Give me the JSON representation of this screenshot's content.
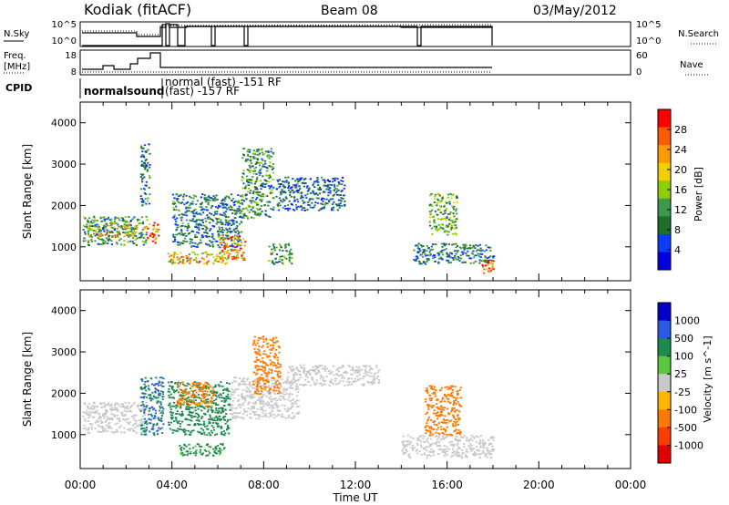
{
  "header": {
    "station": "Kodiak (fitACF)",
    "beam": "Beam 08",
    "date": "03/May/2012"
  },
  "summary_panels": {
    "noise": {
      "left_label": "N.Sky",
      "left_ticks": [
        "10^5",
        "10^0"
      ],
      "right_ticks": [
        "10^5",
        "10^0"
      ],
      "right_label": "N.Search"
    },
    "freq": {
      "left_label_line1": "Freq.",
      "left_label_line2": "[MHz]",
      "left_ticks": [
        "18",
        "8"
      ],
      "right_ticks": [
        "60",
        "0"
      ],
      "right_label": "Nave"
    },
    "cpid": {
      "label": "CPID",
      "segments": [
        {
          "text": "normalsound"
        },
        {
          "text": "normal (fast) -151 RF"
        },
        {
          "text": "(fast) -157 RF"
        }
      ]
    }
  },
  "x_axis": {
    "label": "Time UT",
    "ticks": [
      "00:00",
      "04:00",
      "08:00",
      "12:00",
      "16:00",
      "20:00",
      "00:00"
    ]
  },
  "power_panel": {
    "ylabel": "Slant Range [km]",
    "yticks": [
      "4000",
      "3000",
      "2000",
      "1000"
    ],
    "colorbar_label": "Power [dB]",
    "colorbar_ticks": [
      "28",
      "24",
      "20",
      "16",
      "12",
      "8",
      "4"
    ],
    "colorbar_colors": [
      "#ff0000",
      "#ff5a00",
      "#ff9a00",
      "#f0d000",
      "#8fce00",
      "#3c9a50",
      "#1e6e2c",
      "#0a3cff",
      "#0000e0"
    ]
  },
  "velocity_panel": {
    "ylabel": "Slant Range [km]",
    "yticks": [
      "4000",
      "3000",
      "2000",
      "1000"
    ],
    "colorbar_label": "Velocity [m s^-1]",
    "colorbar_ticks": [
      "1000",
      "500",
      "100",
      "25",
      "-25",
      "-100",
      "-500",
      "-1000"
    ],
    "colorbar_colors": [
      "#0000c8",
      "#2a5ae0",
      "#1e8a50",
      "#5ac83c",
      "#c8c8c8",
      "#ffb400",
      "#ff7800",
      "#ff3c00",
      "#e00000"
    ]
  },
  "chart_data": {
    "type": "heatmap",
    "x_range_hours": [
      0,
      24
    ],
    "y_range_km": [
      180,
      4500
    ],
    "x_ticks_hours": [
      0,
      4,
      8,
      12,
      16,
      20,
      24
    ],
    "y_ticks_km": [
      4000,
      3000,
      2000,
      1000
    ],
    "power_regions": [
      {
        "t0": 0.1,
        "t1": 2.9,
        "r0": 1050,
        "r1": 1750,
        "value": 10
      },
      {
        "t0": 0.3,
        "t1": 2.5,
        "r0": 1250,
        "r1": 1550,
        "value": 18
      },
      {
        "t0": 2.8,
        "t1": 3.4,
        "r0": 1100,
        "r1": 1600,
        "value": 26
      },
      {
        "t0": 2.6,
        "t1": 3.0,
        "r0": 2000,
        "r1": 3500,
        "value": 8
      },
      {
        "t0": 3.8,
        "t1": 6.5,
        "r0": 600,
        "r1": 900,
        "value": 20
      },
      {
        "t0": 4.0,
        "t1": 7.0,
        "r0": 1000,
        "r1": 2300,
        "value": 8
      },
      {
        "t0": 6.0,
        "t1": 7.2,
        "r0": 700,
        "r1": 1300,
        "value": 22
      },
      {
        "t0": 7.0,
        "t1": 8.4,
        "r0": 1700,
        "r1": 3400,
        "value": 10
      },
      {
        "t0": 8.5,
        "t1": 11.5,
        "r0": 1900,
        "r1": 2700,
        "value": 6
      },
      {
        "t0": 8.2,
        "t1": 9.2,
        "r0": 600,
        "r1": 1100,
        "value": 10
      },
      {
        "t0": 14.5,
        "t1": 18.0,
        "r0": 600,
        "r1": 1100,
        "value": 8
      },
      {
        "t0": 15.2,
        "t1": 16.4,
        "r0": 1300,
        "r1": 2300,
        "value": 12
      },
      {
        "t0": 17.4,
        "t1": 18.0,
        "r0": 380,
        "r1": 720,
        "value": 26
      }
    ],
    "velocity_regions": [
      {
        "t0": 0.1,
        "t1": 2.9,
        "r0": 1050,
        "r1": 1800,
        "value": 0
      },
      {
        "t0": 2.6,
        "t1": 3.6,
        "r0": 1000,
        "r1": 2400,
        "value": 300
      },
      {
        "t0": 4.3,
        "t1": 6.3,
        "r0": 500,
        "r1": 800,
        "value": 80
      },
      {
        "t0": 3.8,
        "t1": 6.5,
        "r0": 1000,
        "r1": 2300,
        "value": 150
      },
      {
        "t0": 4.2,
        "t1": 5.8,
        "r0": 1700,
        "r1": 2300,
        "value": -80
      },
      {
        "t0": 6.5,
        "t1": 9.5,
        "r0": 1400,
        "r1": 2400,
        "value": 0
      },
      {
        "t0": 9.0,
        "t1": 13.0,
        "r0": 2200,
        "r1": 2700,
        "value": 0
      },
      {
        "t0": 7.5,
        "t1": 8.7,
        "r0": 2000,
        "r1": 3400,
        "value": -90
      },
      {
        "t0": 14.0,
        "t1": 18.0,
        "r0": 450,
        "r1": 1000,
        "value": 0
      },
      {
        "t0": 15.0,
        "t1": 16.6,
        "r0": 1000,
        "r1": 2200,
        "value": -200
      }
    ]
  }
}
